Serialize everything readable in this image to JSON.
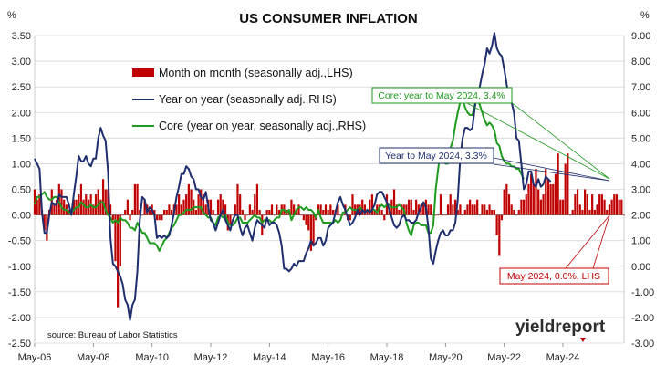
{
  "chart_data": {
    "type": "bar+line",
    "title": "US CONSUMER INFLATION",
    "y_left_unit": "%",
    "y_right_unit": "%",
    "y_left_lim": [
      -2.5,
      3.5
    ],
    "y_right_lim": [
      -3.0,
      9.0
    ],
    "y_left_ticks": [
      "3.50",
      "3.00",
      "2.50",
      "2.00",
      "1.50",
      "1.00",
      "0.50",
      "0.00",
      "-0.50",
      "-1.00",
      "-1.50",
      "-2.00",
      "-2.50"
    ],
    "y_right_ticks": [
      "9.00",
      "8.00",
      "7.00",
      "6.00",
      "5.00",
      "4.00",
      "3.00",
      "2.00",
      "1.00",
      "0.00",
      "-1.00",
      "-2.00",
      "-3.00"
    ],
    "x_tick_labels": [
      "May-06",
      "May-08",
      "May-10",
      "May-12",
      "May-14",
      "May-16",
      "May-18",
      "May-20",
      "May-22",
      "May-24"
    ],
    "legend": [
      {
        "label": "Month on month (seasonally adj.,LHS)",
        "color": "#c00000",
        "kind": "bar"
      },
      {
        "label": "Year on year (seasonally adj.,RHS)",
        "color": "#1f2f6e",
        "kind": "line"
      },
      {
        "label": "Core (year on year, seasonally adj.,RHS)",
        "color": "#1e9a1e",
        "kind": "line"
      }
    ],
    "source": "source: Bureau of Labor Statistics",
    "brand": "yieldreport",
    "annotations": [
      {
        "text": "Core: year to May 2024, 3.4%",
        "color": "#1e9a1e"
      },
      {
        "text": "Year to May 2024, 3.3%",
        "color": "#1f2f6e"
      },
      {
        "text": "May 2024, 0.0%, LHS",
        "color": "#c00000"
      }
    ],
    "series": [
      {
        "name": "Month on month (seasonally adj.,LHS)",
        "axis": "left",
        "start": "2006-05",
        "values": [
          0.5,
          0.3,
          0.4,
          0.1,
          -0.3,
          -0.5,
          0.1,
          0.5,
          0.2,
          0.3,
          0.6,
          0.5,
          0.3,
          0.2,
          0.1,
          0.1,
          0.3,
          0.3,
          0.4,
          0.6,
          0.3,
          0.4,
          0.3,
          0.4,
          0.2,
          0.4,
          0.5,
          0.3,
          0.7,
          0.5,
          0.5,
          0.2,
          -0.1,
          -0.9,
          -1.8,
          -1.0,
          0.0,
          0.1,
          0.3,
          -0.1,
          0.1,
          0.6,
          0.6,
          0.1,
          0.0,
          0.3,
          0.2,
          0.1,
          0.2,
          0.1,
          -0.1,
          -0.1,
          -0.1,
          0.1,
          0.1,
          0.2,
          0.1,
          0.2,
          0.2,
          0.4,
          0.2,
          0.3,
          0.4,
          0.6,
          0.5,
          0.3,
          0.1,
          0.4,
          0.5,
          0.4,
          0.2,
          0.3,
          0.3,
          0.1,
          0.0,
          0.3,
          0.4,
          0.3,
          0.2,
          -0.3,
          -0.2,
          0.0,
          0.2,
          0.6,
          0.4,
          0.1,
          -0.1,
          0.0,
          0.2,
          0.1,
          0.4,
          0.6,
          0.1,
          -0.4,
          0.0,
          0.1,
          0.1,
          0.2,
          0.0,
          0.2,
          0.1,
          0.2,
          0.2,
          0.1,
          0.1,
          0.3,
          0.2,
          0.1,
          0.2,
          0.0,
          -0.1,
          -0.2,
          -0.3,
          -0.7,
          -0.6,
          -0.1,
          0.2,
          0.2,
          0.1,
          0.2,
          0.1,
          0.2,
          0.1,
          0.1,
          0.2,
          0.0,
          0.0,
          0.2,
          -0.1,
          -0.1,
          0.4,
          0.2,
          0.2,
          0.2,
          0.3,
          0.2,
          0.1,
          0.3,
          0.4,
          0.1,
          0.2,
          0.2,
          0.1,
          -0.1,
          0.4,
          0.1,
          0.3,
          0.5,
          0.2,
          0.1,
          0.2,
          0.2,
          0.2,
          0.3,
          0.3,
          0.1,
          0.3,
          0.2,
          0.2,
          0.2,
          0.3,
          0.2,
          0.2,
          0.0,
          0.0,
          0.0,
          0.4,
          0.0,
          0.0,
          0.2,
          0.4,
          0.2,
          0.3,
          0.1,
          0.2,
          0.0,
          0.1,
          0.2,
          0.3,
          0.2,
          0.2,
          0.3,
          0.0,
          0.2,
          0.2,
          0.1,
          0.2,
          0.1,
          0.1,
          -0.4,
          -0.8,
          -0.1,
          0.5,
          0.6,
          0.4,
          0.2,
          0.1,
          0.0,
          0.1,
          0.3,
          0.3,
          0.4,
          0.6,
          0.8,
          0.6,
          0.9,
          0.5,
          0.3,
          0.4,
          0.9,
          0.7,
          0.6,
          0.6,
          0.8,
          1.2,
          0.3,
          0.3,
          1.0,
          1.2,
          0.0,
          0.1,
          0.4,
          0.5,
          0.2,
          0.1,
          0.5,
          0.4,
          0.1,
          0.4,
          0.1,
          0.2,
          0.4,
          0.4,
          0.3,
          0.1,
          0.2,
          0.3,
          0.4,
          0.4,
          0.3,
          0.3,
          0.0
        ]
      },
      {
        "name": "Year on year (seasonally adj.,RHS)",
        "axis": "right",
        "start": "2006-05",
        "values": [
          4.2,
          4.0,
          3.8,
          2.1,
          1.3,
          1.3,
          2.0,
          2.5,
          2.4,
          2.4,
          2.8,
          2.7,
          2.7,
          2.7,
          2.4,
          2.0,
          2.8,
          3.5,
          4.3,
          4.1,
          4.1,
          4.3,
          4.0,
          3.9,
          4.2,
          4.2,
          5.0,
          5.4,
          5.1,
          4.9,
          3.7,
          1.1,
          0.1,
          0.0,
          -0.2,
          -0.4,
          -0.7,
          -1.3,
          -1.5,
          -2.1,
          -1.5,
          -1.3,
          -0.2,
          1.8,
          2.7,
          2.6,
          2.1,
          2.3,
          2.2,
          2.0,
          1.1,
          1.2,
          1.1,
          1.2,
          1.1,
          1.2,
          1.6,
          2.1,
          2.7,
          3.1,
          3.6,
          3.6,
          3.9,
          3.8,
          3.5,
          3.4,
          3.0,
          3.0,
          2.7,
          2.6,
          2.9,
          2.3,
          1.8,
          1.7,
          1.4,
          1.7,
          2.0,
          2.2,
          1.8,
          1.6,
          1.4,
          1.8,
          2.0,
          2.0,
          1.5,
          1.2,
          1.5,
          1.6,
          1.3,
          1.0,
          1.5,
          1.8,
          1.7,
          1.6,
          1.5,
          1.9,
          1.6,
          1.7,
          1.7,
          1.6,
          1.3,
          0.8,
          -0.1,
          -0.1,
          -0.2,
          -0.1,
          0.1,
          0.0,
          0.2,
          0.2,
          0.2,
          0.5,
          0.7,
          1.0,
          0.8,
          0.9,
          1.1,
          1.1,
          0.8,
          1.0,
          1.5,
          1.6,
          1.7,
          2.1,
          2.5,
          2.7,
          2.4,
          2.2,
          1.9,
          1.6,
          1.7,
          1.9,
          2.2,
          2.0,
          2.2,
          2.1,
          2.2,
          2.1,
          2.2,
          2.4,
          2.8,
          2.9,
          2.9,
          2.7,
          2.5,
          2.2,
          1.9,
          1.6,
          1.5,
          1.6,
          1.9,
          2.0,
          1.8,
          1.8,
          1.7,
          1.7,
          1.8,
          2.1,
          2.3,
          2.5,
          2.3,
          1.5,
          0.3,
          0.1,
          0.6,
          1.0,
          1.3,
          1.4,
          1.2,
          1.2,
          1.4,
          1.4,
          1.7,
          2.6,
          4.2,
          5.0,
          5.4,
          5.4,
          5.3,
          5.4,
          6.2,
          6.8,
          7.0,
          7.5,
          7.9,
          8.5,
          8.3,
          8.6,
          9.1,
          8.5,
          8.3,
          8.2,
          7.7,
          7.1,
          6.5,
          6.4,
          6.0,
          5.0,
          4.9,
          4.0,
          3.0,
          3.2,
          3.7,
          3.7,
          3.2,
          3.1,
          3.4,
          3.1,
          3.2,
          3.5,
          3.4,
          3.3
        ]
      },
      {
        "name": "Core (year on year, seasonally adj.,RHS)",
        "axis": "right",
        "start": "2006-05",
        "values": [
          2.4,
          2.7,
          2.7,
          2.8,
          2.9,
          2.7,
          2.6,
          2.6,
          2.7,
          2.7,
          2.5,
          2.3,
          2.2,
          2.2,
          2.1,
          2.1,
          2.2,
          2.3,
          2.3,
          2.5,
          2.4,
          2.3,
          2.3,
          2.4,
          2.3,
          2.3,
          2.4,
          2.5,
          2.5,
          2.2,
          2.0,
          1.9,
          1.7,
          1.8,
          1.7,
          1.9,
          1.8,
          1.8,
          1.7,
          1.5,
          1.5,
          1.4,
          1.7,
          1.5,
          1.3,
          1.3,
          1.1,
          0.9,
          0.9,
          0.9,
          0.8,
          0.6,
          0.8,
          1.0,
          1.1,
          1.3,
          1.5,
          1.6,
          1.8,
          2.0,
          2.0,
          2.1,
          2.2,
          2.2,
          2.2,
          2.3,
          2.3,
          2.3,
          2.3,
          2.1,
          2.0,
          1.9,
          1.9,
          1.7,
          1.6,
          1.9,
          2.0,
          1.9,
          2.0,
          1.7,
          1.6,
          1.6,
          1.7,
          1.9,
          1.9,
          1.7,
          1.7,
          1.7,
          1.8,
          1.9,
          2.0,
          1.9,
          1.9,
          1.7,
          1.8,
          1.8,
          1.8,
          1.7,
          1.8,
          1.9,
          1.9,
          2.2,
          2.2,
          2.1,
          2.2,
          1.8,
          2.0,
          2.2,
          2.3,
          2.3,
          2.2,
          2.3,
          2.2,
          2.2,
          2.1,
          1.9,
          2.2,
          1.9,
          1.7,
          1.7,
          1.7,
          1.7,
          1.7,
          1.8,
          1.7,
          1.8,
          2.1,
          2.1,
          2.2,
          2.3,
          2.2,
          2.2,
          2.2,
          2.3,
          2.2,
          2.1,
          2.2,
          2.1,
          2.2,
          2.2,
          2.1,
          2.3,
          2.4,
          2.3,
          2.4,
          2.4,
          2.3,
          2.3,
          2.3,
          2.4,
          2.3,
          2.2,
          1.7,
          1.4,
          1.2,
          1.6,
          1.7,
          1.7,
          1.6,
          1.6,
          1.6,
          1.3,
          1.3,
          1.6,
          3.0,
          3.8,
          4.5,
          4.3,
          4.0,
          4.0,
          4.6,
          4.9,
          5.5,
          6.0,
          6.4,
          6.5,
          6.2,
          6.0,
          5.9,
          5.9,
          6.3,
          6.6,
          6.3,
          6.0,
          5.7,
          5.5,
          5.6,
          5.5,
          5.3,
          4.8,
          4.7,
          4.3,
          4.1,
          4.0,
          4.0,
          3.9,
          3.9,
          3.8,
          3.8,
          3.6,
          3.4
        ]
      }
    ]
  }
}
